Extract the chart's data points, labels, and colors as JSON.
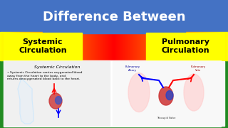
{
  "title": "Difference Between",
  "title_color": "#ffffff",
  "title_bg_color": "#4472c4",
  "left_label": "Systemic\nCirculation",
  "right_label": "Pulmonary\nCirculation",
  "label_color": "#000000",
  "label_bg_color": "#ffff00",
  "bg_gradient_top": "#4472c4",
  "bg_gradient_bottom": "#008000",
  "bg_mid": "#ff0000",
  "bottom_bg": "#ffffff",
  "systemic_text_title": "Systemic Circulation",
  "systemic_text_body": "Systemic Circulation carries oxygenated blood\naway from the heart to the body, and\nreturns deoxygenated blood back to the heart.",
  "fig_width": 3.2,
  "fig_height": 1.8,
  "dpi": 100
}
